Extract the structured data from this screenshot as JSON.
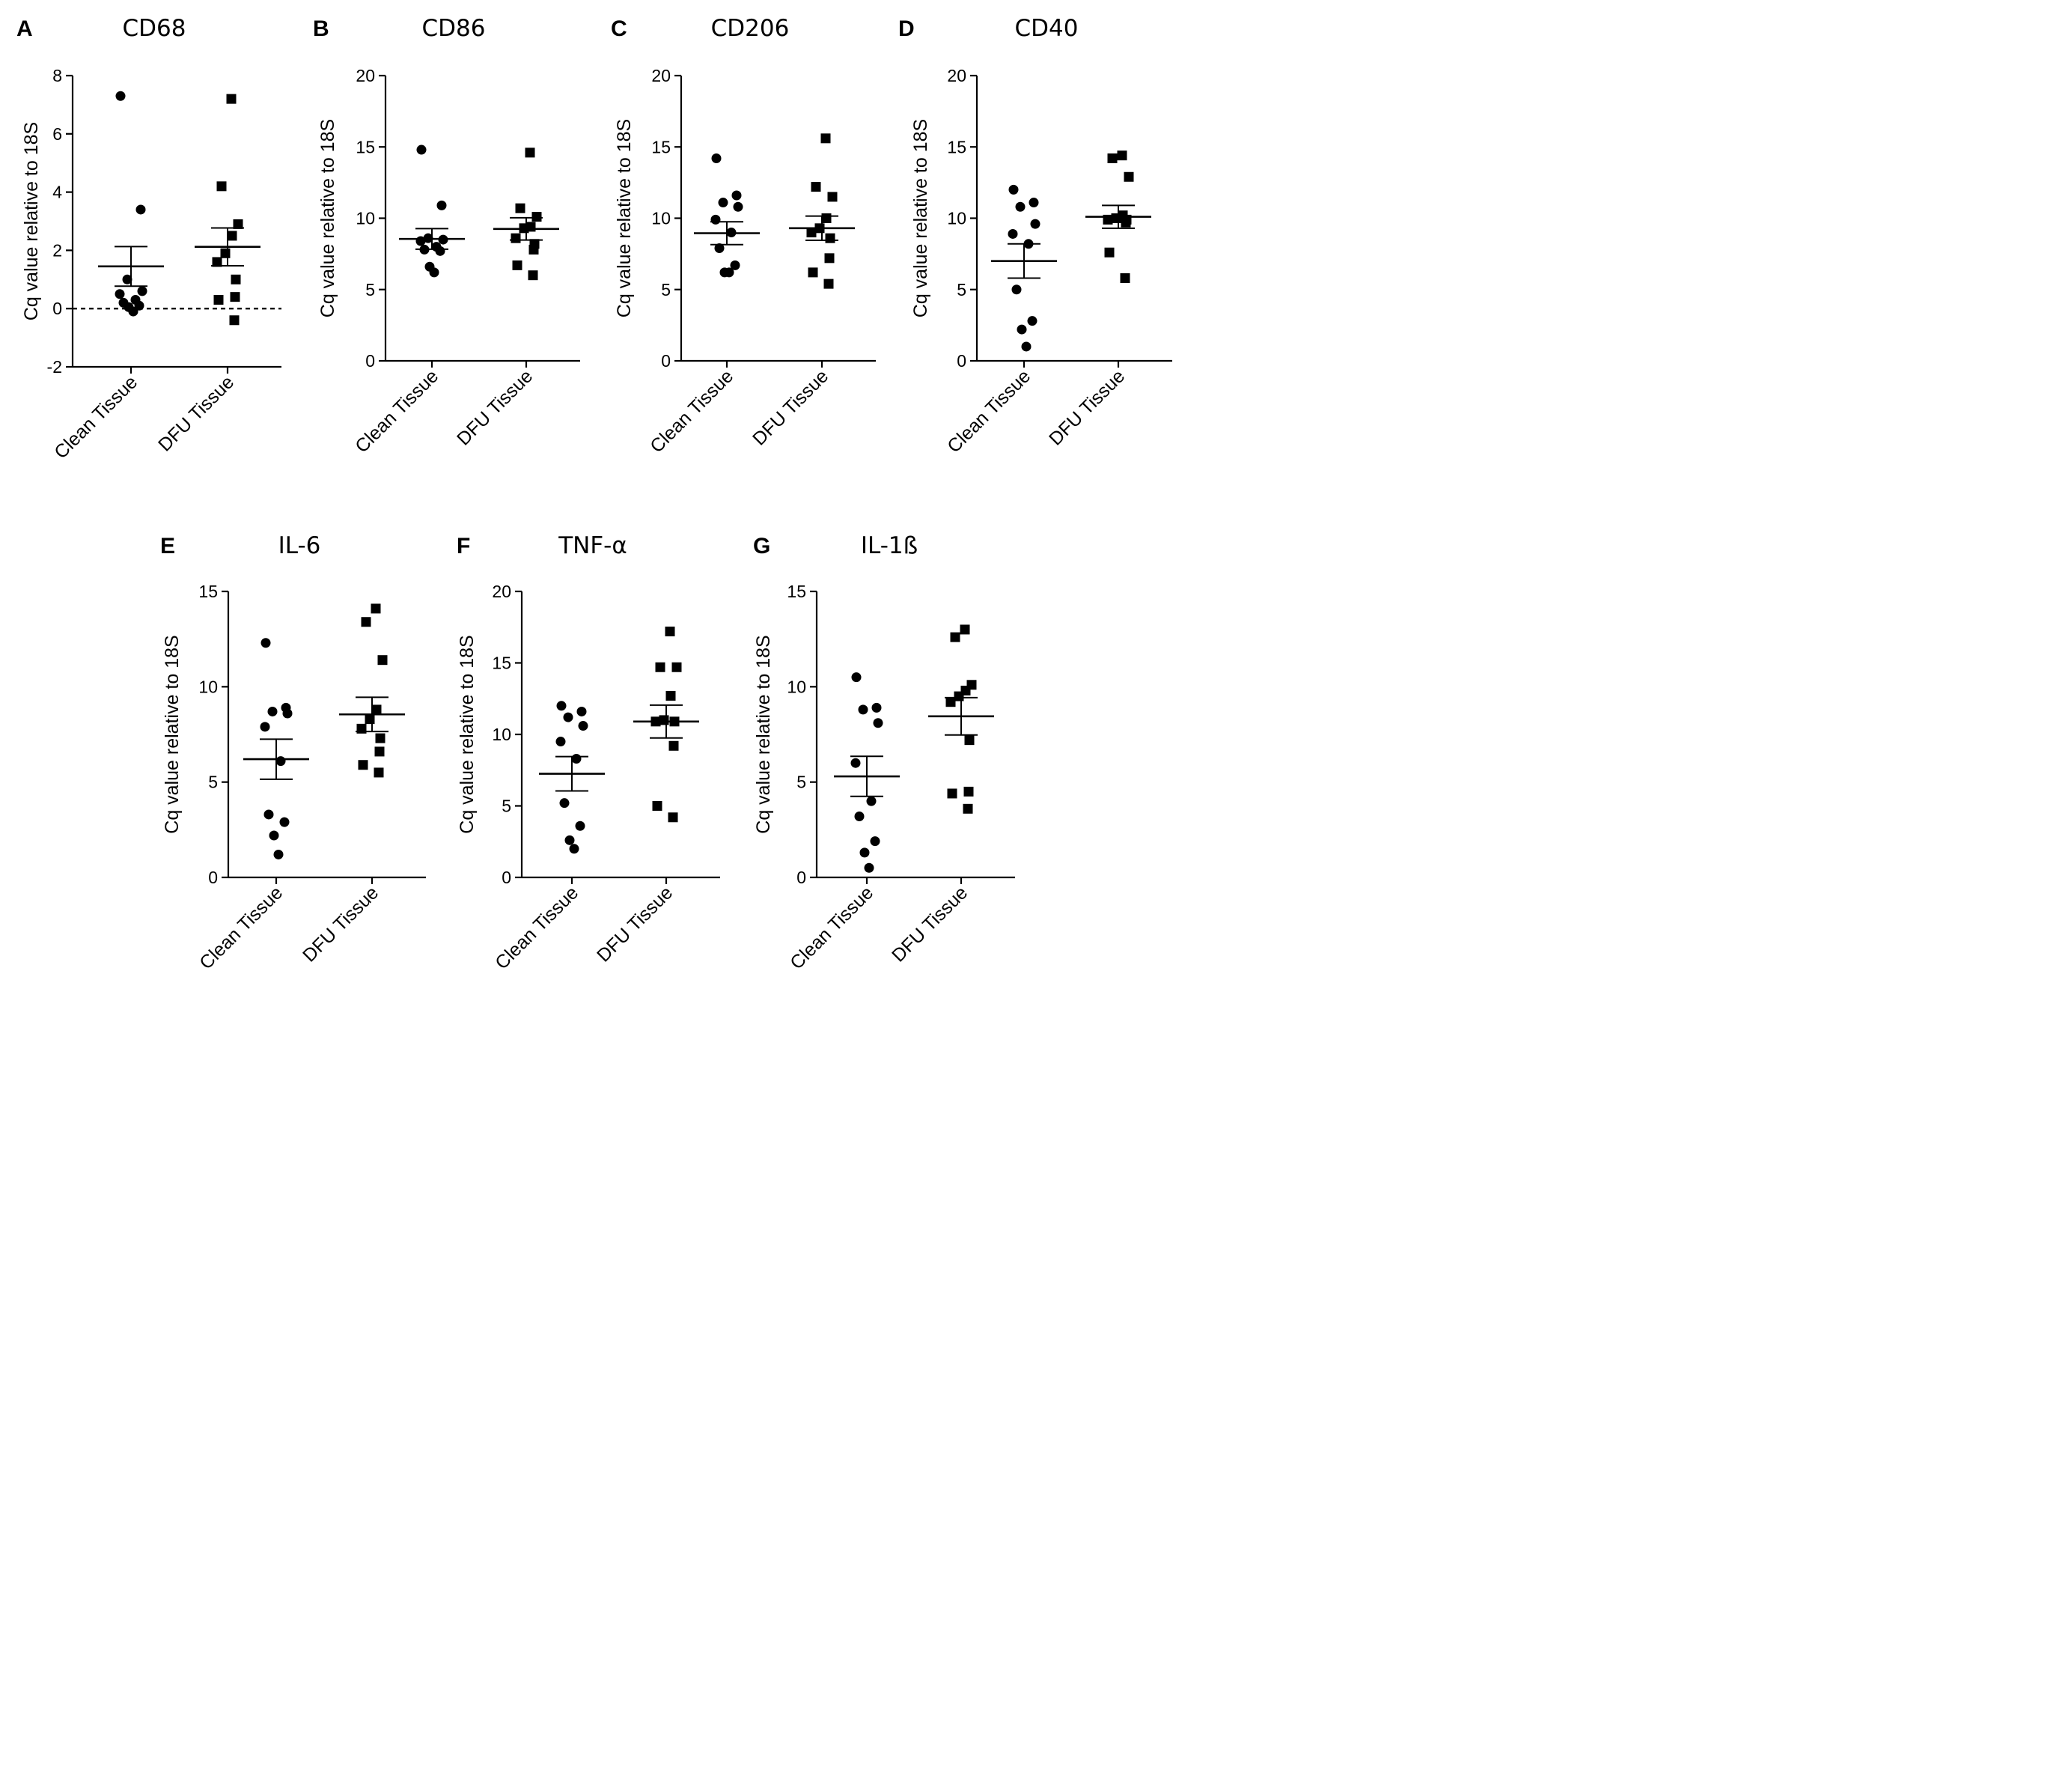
{
  "chart_data": [
    {
      "type": "scatter",
      "panel": "A",
      "title": "CD68",
      "ylabel": "Cq value relative to 18S",
      "ylim": [
        -2,
        8
      ],
      "yticks": [
        "-2",
        "0",
        "2",
        "4",
        "6",
        "8"
      ],
      "zero_line": true,
      "categories": [
        "Clean Tissue",
        "DFU Tissue"
      ],
      "series": [
        {
          "name": "Clean Tissue",
          "marker": "circle",
          "values": [
            7.3,
            3.4,
            1.0,
            0.6,
            0.5,
            0.3,
            0.2,
            0.1,
            0.05,
            -0.1
          ],
          "mean": 1.45,
          "sem": 0.68
        },
        {
          "name": "DFU Tissue",
          "marker": "square",
          "values": [
            7.2,
            4.2,
            2.9,
            2.5,
            1.9,
            1.6,
            1.0,
            0.4,
            0.3,
            -0.4
          ],
          "mean": 2.12,
          "sem": 0.65
        }
      ]
    },
    {
      "type": "scatter",
      "panel": "B",
      "title": "CD86",
      "ylabel": "Cq value relative to 18S",
      "ylim": [
        0,
        20
      ],
      "yticks": [
        "0",
        "5",
        "10",
        "15",
        "20"
      ],
      "categories": [
        "Clean Tissue",
        "DFU Tissue"
      ],
      "series": [
        {
          "name": "Clean Tissue",
          "marker": "circle",
          "values": [
            14.8,
            10.9,
            8.6,
            8.5,
            8.4,
            8.0,
            7.8,
            7.7,
            6.6,
            6.2
          ],
          "mean": 8.55,
          "sem": 0.72
        },
        {
          "name": "DFU Tissue",
          "marker": "square",
          "values": [
            14.6,
            10.7,
            10.1,
            9.4,
            9.3,
            8.6,
            8.2,
            7.8,
            6.7,
            6.0
          ],
          "mean": 9.25,
          "sem": 0.78
        }
      ]
    },
    {
      "type": "scatter",
      "panel": "C",
      "title": "CD206",
      "ylabel": "Cq value relative to 18S",
      "ylim": [
        0,
        20
      ],
      "yticks": [
        "0",
        "5",
        "10",
        "15",
        "20"
      ],
      "categories": [
        "Clean Tissue",
        "DFU Tissue"
      ],
      "series": [
        {
          "name": "Clean Tissue",
          "marker": "circle",
          "values": [
            14.2,
            11.6,
            11.1,
            10.8,
            9.9,
            9.0,
            7.9,
            6.7,
            6.2,
            6.2
          ],
          "mean": 8.95,
          "sem": 0.8
        },
        {
          "name": "DFU Tissue",
          "marker": "square",
          "values": [
            15.6,
            12.2,
            11.5,
            10.0,
            9.3,
            9.0,
            8.6,
            7.2,
            6.2,
            5.4
          ],
          "mean": 9.3,
          "sem": 0.85
        }
      ]
    },
    {
      "type": "scatter",
      "panel": "D",
      "title": "CD40",
      "ylabel": "Cq value relative to 18S",
      "ylim": [
        0,
        20
      ],
      "yticks": [
        "0",
        "5",
        "10",
        "15",
        "20"
      ],
      "categories": [
        "Clean Tissue",
        "DFU Tissue"
      ],
      "series": [
        {
          "name": "Clean Tissue",
          "marker": "circle",
          "values": [
            12.0,
            11.1,
            10.8,
            9.6,
            8.9,
            8.2,
            5.0,
            2.8,
            2.2,
            1.0
          ],
          "mean": 7.0,
          "sem": 1.2
        },
        {
          "name": "DFU Tissue",
          "marker": "square",
          "values": [
            14.4,
            14.2,
            12.9,
            10.2,
            10.0,
            9.9,
            9.9,
            9.7,
            7.6,
            5.8
          ],
          "mean": 10.1,
          "sem": 0.8
        }
      ]
    },
    {
      "type": "scatter",
      "panel": "E",
      "title": "IL-6",
      "ylabel": "Cq value relative to 18S",
      "ylim": [
        0,
        15
      ],
      "yticks": [
        "0",
        "5",
        "10",
        "15"
      ],
      "categories": [
        "Clean Tissue",
        "DFU Tissue"
      ],
      "series": [
        {
          "name": "Clean Tissue",
          "marker": "circle",
          "values": [
            12.3,
            8.9,
            8.7,
            8.6,
            7.9,
            6.1,
            3.3,
            2.9,
            2.2,
            1.2
          ],
          "mean": 6.2,
          "sem": 1.05
        },
        {
          "name": "DFU Tissue",
          "marker": "square",
          "values": [
            14.1,
            13.4,
            11.4,
            8.8,
            8.3,
            7.8,
            7.3,
            6.6,
            5.9,
            5.5
          ],
          "mean": 8.55,
          "sem": 0.9
        }
      ]
    },
    {
      "type": "scatter",
      "panel": "F",
      "title": "TNF-α",
      "ylabel": "Cq value relative to 18S",
      "ylim": [
        0,
        20
      ],
      "yticks": [
        "0",
        "5",
        "10",
        "15",
        "20"
      ],
      "categories": [
        "Clean Tissue",
        "DFU Tissue"
      ],
      "series": [
        {
          "name": "Clean Tissue",
          "marker": "circle",
          "values": [
            12.0,
            11.6,
            11.2,
            10.6,
            9.5,
            8.3,
            5.2,
            3.6,
            2.6,
            2.0
          ],
          "mean": 7.25,
          "sem": 1.2
        },
        {
          "name": "DFU Tissue",
          "marker": "square",
          "values": [
            17.2,
            14.7,
            14.7,
            12.7,
            11.0,
            10.9,
            10.9,
            9.2,
            5.0,
            4.2
          ],
          "mean": 10.9,
          "sem": 1.15
        }
      ]
    },
    {
      "type": "scatter",
      "panel": "G",
      "title": "IL-1ß",
      "ylabel": "Cq value relative to 18S",
      "ylim": [
        0,
        15
      ],
      "yticks": [
        "0",
        "5",
        "10",
        "15"
      ],
      "categories": [
        "Clean Tissue",
        "DFU Tissue"
      ],
      "series": [
        {
          "name": "Clean Tissue",
          "marker": "circle",
          "values": [
            10.5,
            8.9,
            8.8,
            8.1,
            6.0,
            4.0,
            3.2,
            1.9,
            1.3,
            0.5
          ],
          "mean": 5.3,
          "sem": 1.05
        },
        {
          "name": "DFU Tissue",
          "marker": "square",
          "values": [
            13.0,
            12.6,
            10.1,
            9.8,
            9.5,
            9.2,
            7.2,
            4.5,
            4.4,
            3.6
          ],
          "mean": 8.45,
          "sem": 0.98
        }
      ]
    }
  ]
}
